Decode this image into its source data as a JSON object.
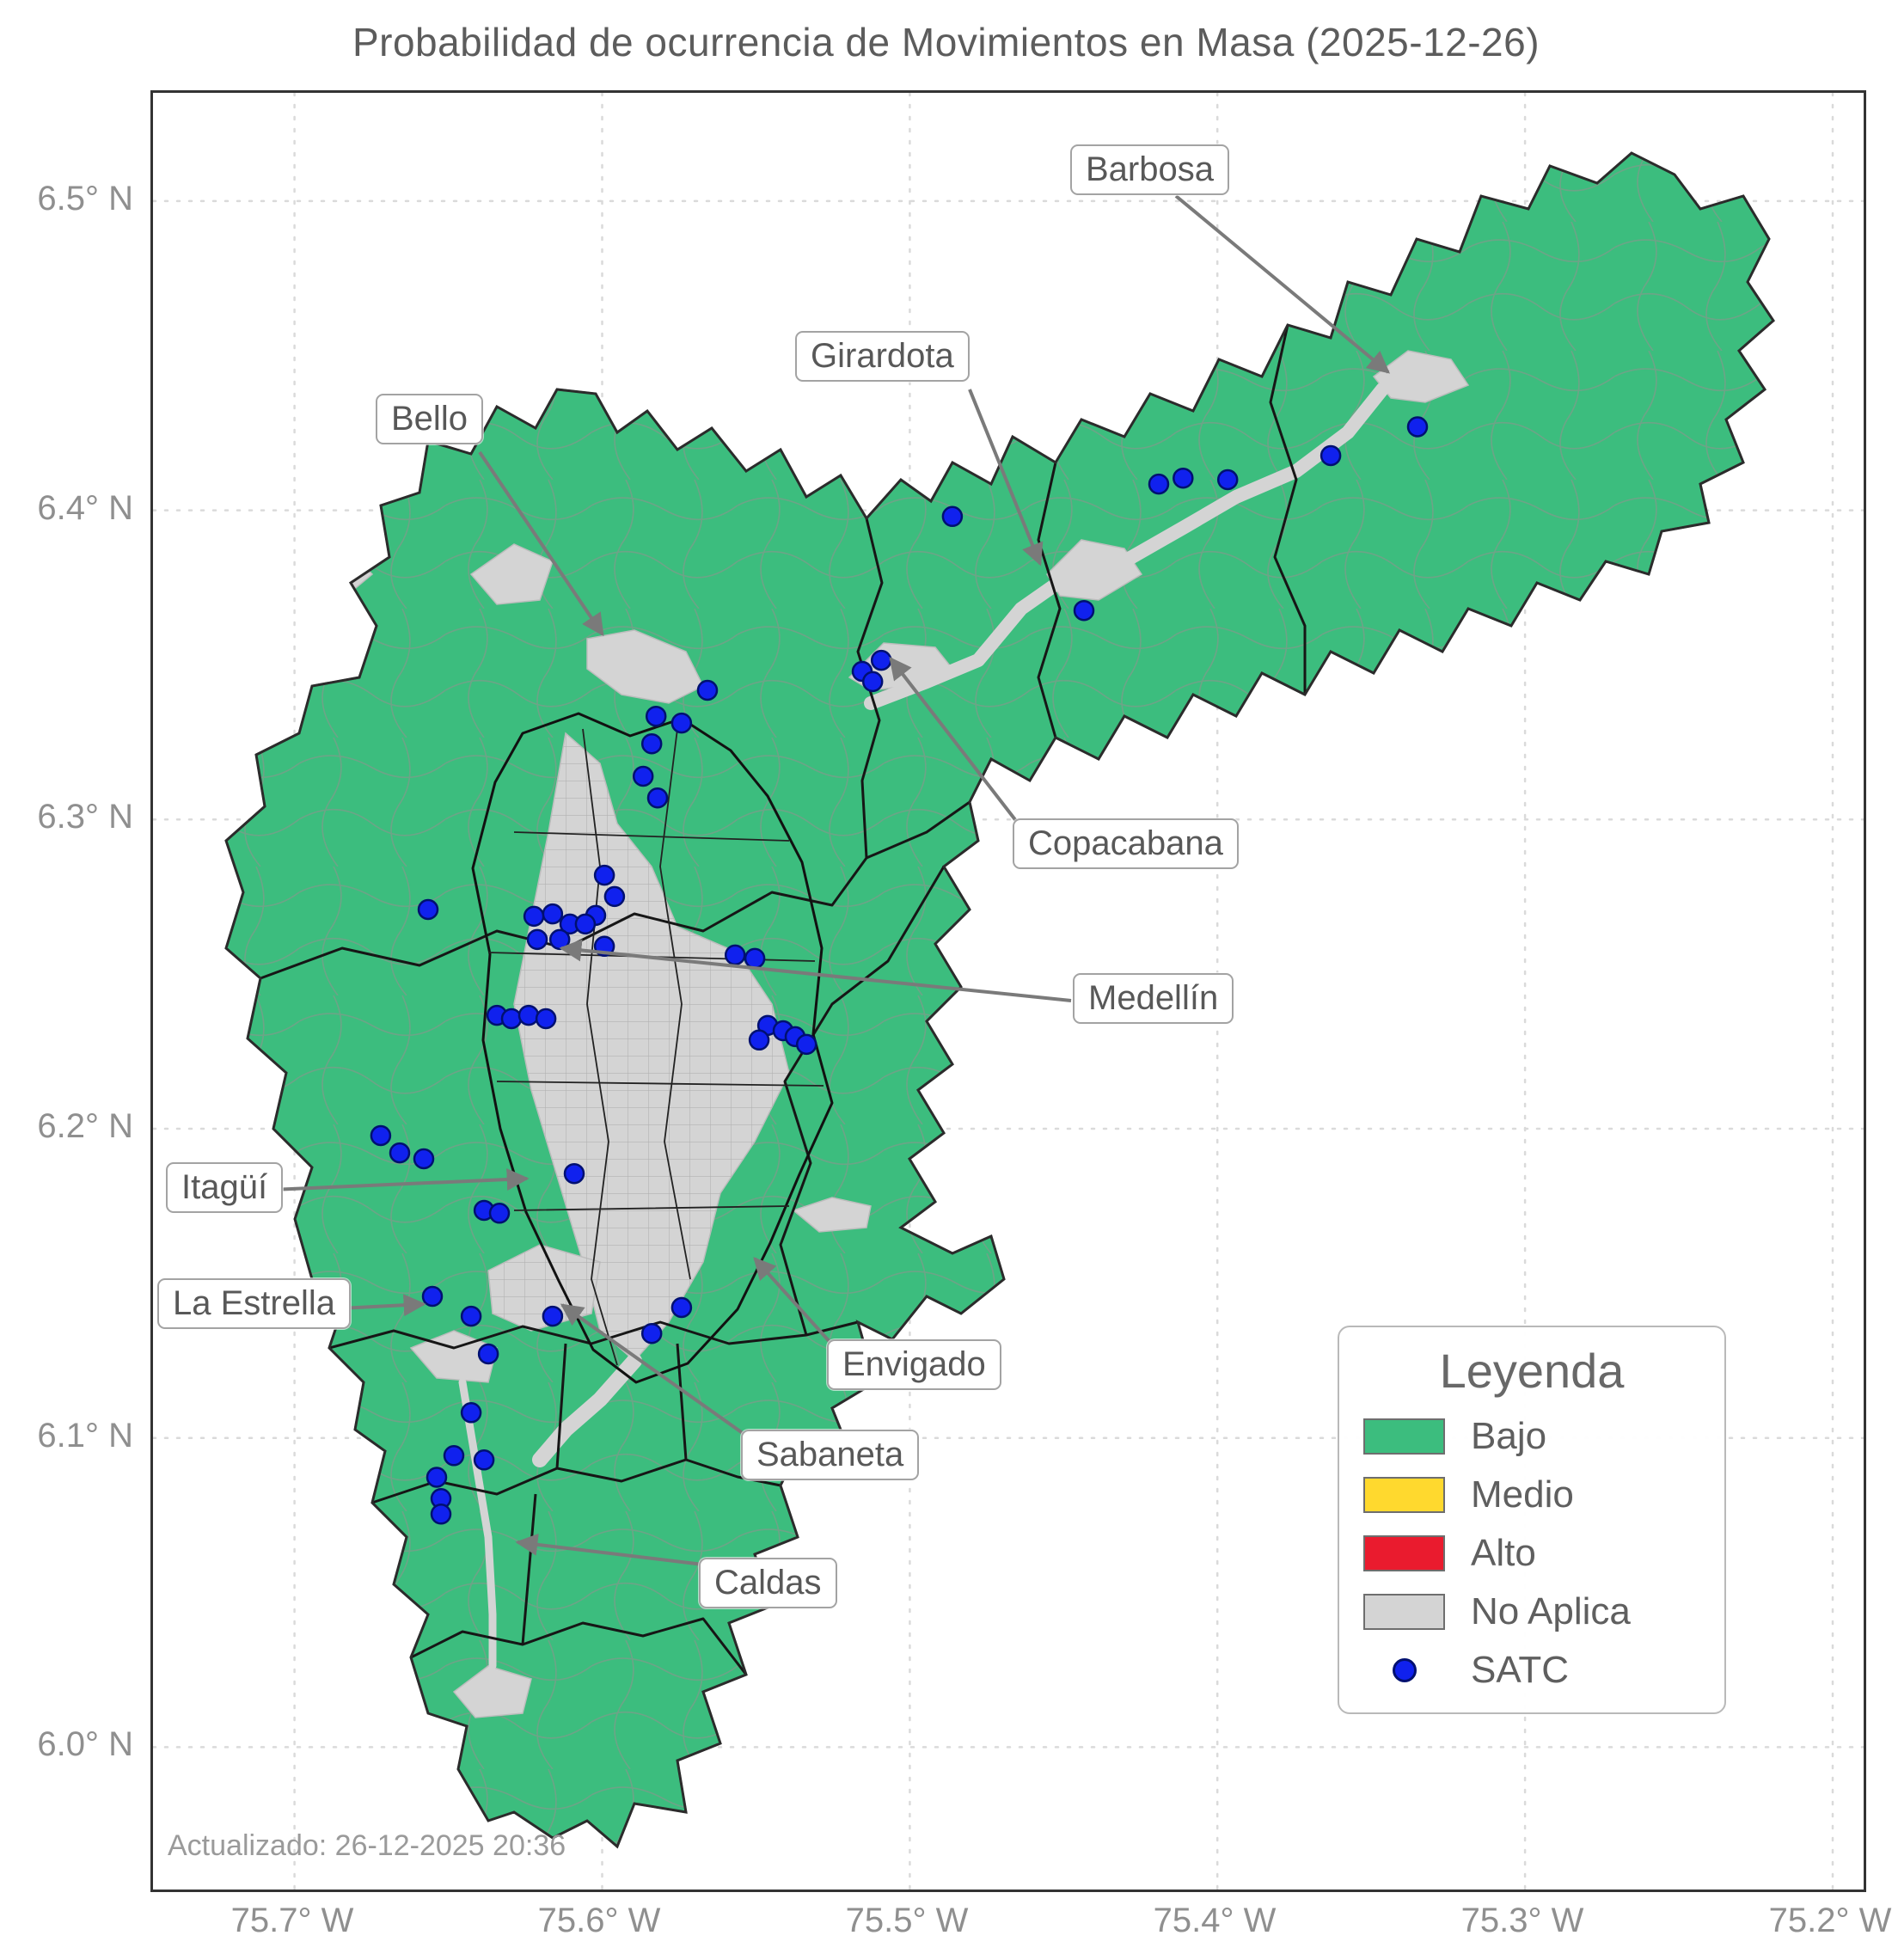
{
  "title": "Probabilidad de ocurrencia de Movimientos en Masa (2025-12-26)",
  "updated": "Actualizado: 26-12-2025 20:36",
  "axes": {
    "x_ticks": [
      "75.7° W",
      "75.6° W",
      "75.5° W",
      "75.4° W",
      "75.3° W",
      "75.2° W"
    ],
    "y_ticks": [
      "6.5° N",
      "6.4° N",
      "6.3° N",
      "6.2° N",
      "6.1° N",
      "6.0° N"
    ],
    "lon_min": -75.746,
    "lon_max": -75.19,
    "lat_min": 5.954,
    "lat_max": 6.535
  },
  "legend": {
    "title": "Leyenda",
    "items": [
      {
        "label": "Bajo",
        "color": "#3CBD7E",
        "type": "patch"
      },
      {
        "label": "Medio",
        "color": "#FFD92E",
        "type": "patch"
      },
      {
        "label": "Alto",
        "color": "#EA1B2E",
        "type": "patch"
      },
      {
        "label": "No Aplica",
        "color": "#D4D4D4",
        "type": "patch"
      },
      {
        "label": "SATC",
        "color": "#1021EE",
        "type": "dot"
      }
    ]
  },
  "annotations": [
    {
      "label": "Barbosa"
    },
    {
      "label": "Girardota"
    },
    {
      "label": "Bello"
    },
    {
      "label": "Copacabana"
    },
    {
      "label": "Medellín"
    },
    {
      "label": "Itagüí"
    },
    {
      "label": "La Estrella"
    },
    {
      "label": "Envigado"
    },
    {
      "label": "Sabaneta"
    },
    {
      "label": "Caldas"
    }
  ],
  "map": {
    "probability_level_shown": "Bajo",
    "satc_points": [
      [
        -75.335,
        6.427
      ],
      [
        -75.3632,
        6.4177
      ],
      [
        -75.3967,
        6.4099
      ],
      [
        -75.4112,
        6.4104
      ],
      [
        -75.4191,
        6.4085
      ],
      [
        -75.4862,
        6.398
      ],
      [
        -75.4434,
        6.3676
      ],
      [
        -75.5155,
        6.3479
      ],
      [
        -75.5093,
        6.3515
      ],
      [
        -75.5121,
        6.3446
      ],
      [
        -75.5658,
        6.3418
      ],
      [
        -75.5825,
        6.3334
      ],
      [
        -75.5742,
        6.3312
      ],
      [
        -75.5839,
        6.3245
      ],
      [
        -75.5867,
        6.314
      ],
      [
        -75.582,
        6.307
      ],
      [
        -75.5993,
        6.282
      ],
      [
        -75.596,
        6.2751
      ],
      [
        -75.6021,
        6.269
      ],
      [
        -75.6566,
        6.2709
      ],
      [
        -75.6222,
        6.2687
      ],
      [
        -75.6161,
        6.2695
      ],
      [
        -75.6105,
        6.2662
      ],
      [
        -75.6055,
        6.2662
      ],
      [
        -75.6211,
        6.2612
      ],
      [
        -75.6138,
        6.2612
      ],
      [
        -75.5993,
        6.259
      ],
      [
        -75.5568,
        6.2562
      ],
      [
        -75.5504,
        6.2551
      ],
      [
        -75.5462,
        6.2334
      ],
      [
        -75.5412,
        6.2317
      ],
      [
        -75.549,
        6.2287
      ],
      [
        -75.5373,
        6.2298
      ],
      [
        -75.5336,
        6.2273
      ],
      [
        -75.6342,
        6.2367
      ],
      [
        -75.6295,
        6.2356
      ],
      [
        -75.6239,
        6.2367
      ],
      [
        -75.6183,
        6.2356
      ],
      [
        -75.672,
        6.1978
      ],
      [
        -75.6658,
        6.1922
      ],
      [
        -75.658,
        6.1903
      ],
      [
        -75.6091,
        6.1855
      ],
      [
        -75.6384,
        6.1736
      ],
      [
        -75.6334,
        6.1727
      ],
      [
        -75.6552,
        6.1458
      ],
      [
        -75.6426,
        6.1394
      ],
      [
        -75.6161,
        6.1394
      ],
      [
        -75.5742,
        6.1422
      ],
      [
        -75.5839,
        6.1338
      ],
      [
        -75.637,
        6.1272
      ],
      [
        -75.6426,
        6.1082
      ],
      [
        -75.6482,
        6.0943
      ],
      [
        -75.6384,
        6.0929
      ],
      [
        -75.6538,
        6.0873
      ],
      [
        -75.6524,
        6.0804
      ],
      [
        -75.6524,
        6.0754
      ]
    ]
  }
}
